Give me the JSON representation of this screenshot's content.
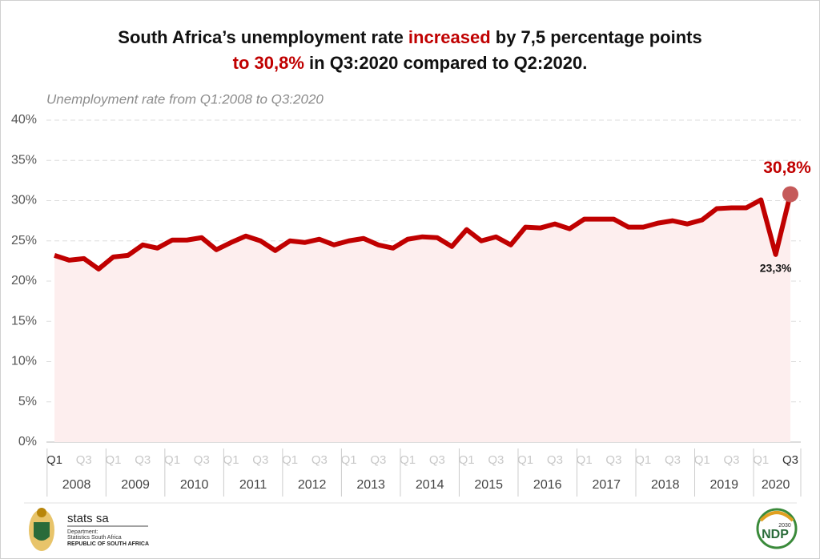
{
  "chart_data": {
    "type": "line",
    "title_lines": [
      [
        {
          "text": "South Africa’s unemployment rate "
        },
        {
          "text": "increased",
          "color": "#c00000"
        },
        {
          "text": " by 7,5 percentage points"
        }
      ],
      [
        {
          "text": "to 30,8%",
          "color": "#c00000"
        },
        {
          "text": " in Q3:2020 compared to Q2:2020."
        }
      ]
    ],
    "subtitle": "Unemployment rate from Q1:2008 to Q3:2020",
    "categories": [
      "Q1",
      null,
      "Q3",
      null,
      "Q1",
      null,
      "Q3",
      null,
      "Q1",
      null,
      "Q3",
      null,
      "Q1",
      null,
      "Q3",
      null,
      "Q1",
      null,
      "Q3",
      null,
      "Q1",
      null,
      "Q3",
      null,
      "Q1",
      null,
      "Q3",
      null,
      "Q1",
      null,
      "Q3",
      null,
      "Q1",
      null,
      "Q3",
      null,
      "Q1",
      null,
      "Q3",
      null,
      "Q1",
      null,
      "Q3",
      null,
      "Q1",
      null,
      "Q3",
      null,
      "Q1",
      null,
      "Q3"
    ],
    "years": [
      "2008",
      "2009",
      "2010",
      "2011",
      "2012",
      "2013",
      "2014",
      "2015",
      "2016",
      "2017",
      "2018",
      "2019",
      "2020"
    ],
    "series": [
      {
        "name": "Unemployment rate",
        "color": "#c00000",
        "area_color": "#fdeeee",
        "values": [
          23.2,
          22.6,
          22.8,
          21.5,
          23.0,
          23.2,
          24.5,
          24.1,
          25.1,
          25.1,
          25.4,
          23.9,
          24.8,
          25.6,
          25.0,
          23.8,
          25.0,
          24.8,
          25.2,
          24.5,
          25.0,
          25.3,
          24.5,
          24.1,
          25.2,
          25.5,
          25.4,
          24.3,
          26.4,
          25.0,
          25.5,
          24.5,
          26.7,
          26.6,
          27.1,
          26.5,
          27.7,
          27.7,
          27.7,
          26.7,
          26.7,
          27.2,
          27.5,
          27.1,
          27.6,
          29.0,
          29.1,
          29.1,
          30.1,
          23.3,
          30.8
        ],
        "value_labels": [
          null,
          null,
          null,
          null,
          null,
          null,
          null,
          null,
          null,
          null,
          null,
          null,
          null,
          null,
          null,
          null,
          null,
          null,
          null,
          null,
          null,
          null,
          null,
          null,
          null,
          null,
          null,
          null,
          null,
          null,
          null,
          null,
          null,
          null,
          null,
          null,
          null,
          null,
          null,
          null,
          null,
          null,
          null,
          null,
          null,
          null,
          null,
          null,
          null,
          "23,3%",
          "30,8%"
        ]
      }
    ],
    "ylim": [
      0,
      40
    ],
    "yticks": [
      {
        "value": 0,
        "label": "0%"
      },
      {
        "value": 5,
        "label": "5%"
      },
      {
        "value": 10,
        "label": "10%"
      },
      {
        "value": 15,
        "label": "15%"
      },
      {
        "value": 20,
        "label": "20%"
      },
      {
        "value": 25,
        "label": "25%"
      },
      {
        "value": 30,
        "label": "30%"
      },
      {
        "value": 35,
        "label": "35%"
      },
      {
        "value": 40,
        "label": "40%"
      }
    ],
    "grid": true
  },
  "footer": {
    "brand": "stats sa",
    "department": "Department:",
    "agency": "Statistics South Africa",
    "country": "REPUBLIC OF SOUTH AFRICA",
    "ndp": "NDP",
    "ndp_year": "2030"
  }
}
